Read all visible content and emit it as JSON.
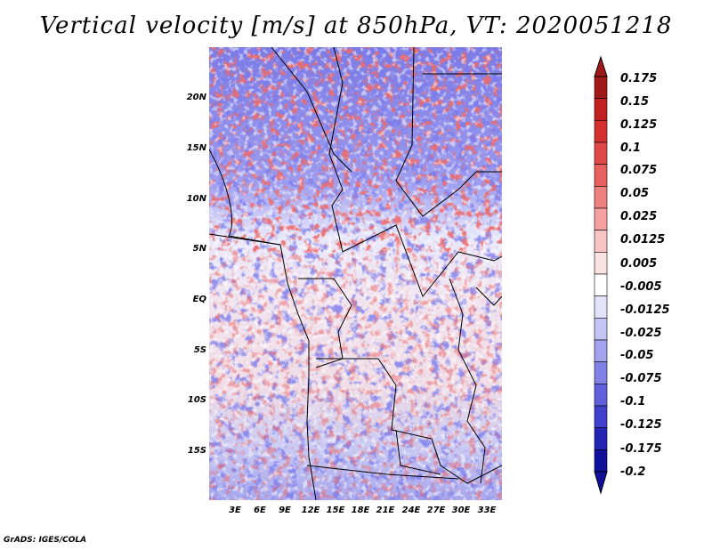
{
  "title": "Vertical velocity [m/s] at 850hPa, VT: 2020051218",
  "credit": "GrADS: IGES/COLA",
  "map": {
    "variable": "Vertical velocity",
    "units": "m/s",
    "level": "850hPa",
    "valid_time": "2020051218",
    "lat_labels": [
      "20N",
      "15N",
      "10N",
      "5N",
      "EQ",
      "5S",
      "10S",
      "15S"
    ],
    "lon_labels": [
      "3E",
      "6E",
      "9E",
      "12E",
      "15E",
      "18E",
      "21E",
      "24E",
      "27E",
      "30E",
      "33E"
    ]
  },
  "colorbar": {
    "labels": [
      "0.175",
      "0.15",
      "0.125",
      "0.1",
      "0.075",
      "0.05",
      "0.025",
      "0.0125",
      "0.005",
      "-0.005",
      "-0.0125",
      "-0.025",
      "-0.05",
      "-0.075",
      "-0.1",
      "-0.125",
      "-0.175",
      "-0.2"
    ],
    "colors": [
      "#a01818",
      "#c02020",
      "#d43030",
      "#e04848",
      "#e86060",
      "#ee8080",
      "#f4a0a0",
      "#f8c4c4",
      "#fbe2e2",
      "#ffffff",
      "#e2e2fb",
      "#c4c4f5",
      "#a2a2ee",
      "#8282e6",
      "#6060dc",
      "#4040cc",
      "#2424b4",
      "#10109a"
    ],
    "max_color": "#a01818",
    "min_color": "#10109a"
  }
}
